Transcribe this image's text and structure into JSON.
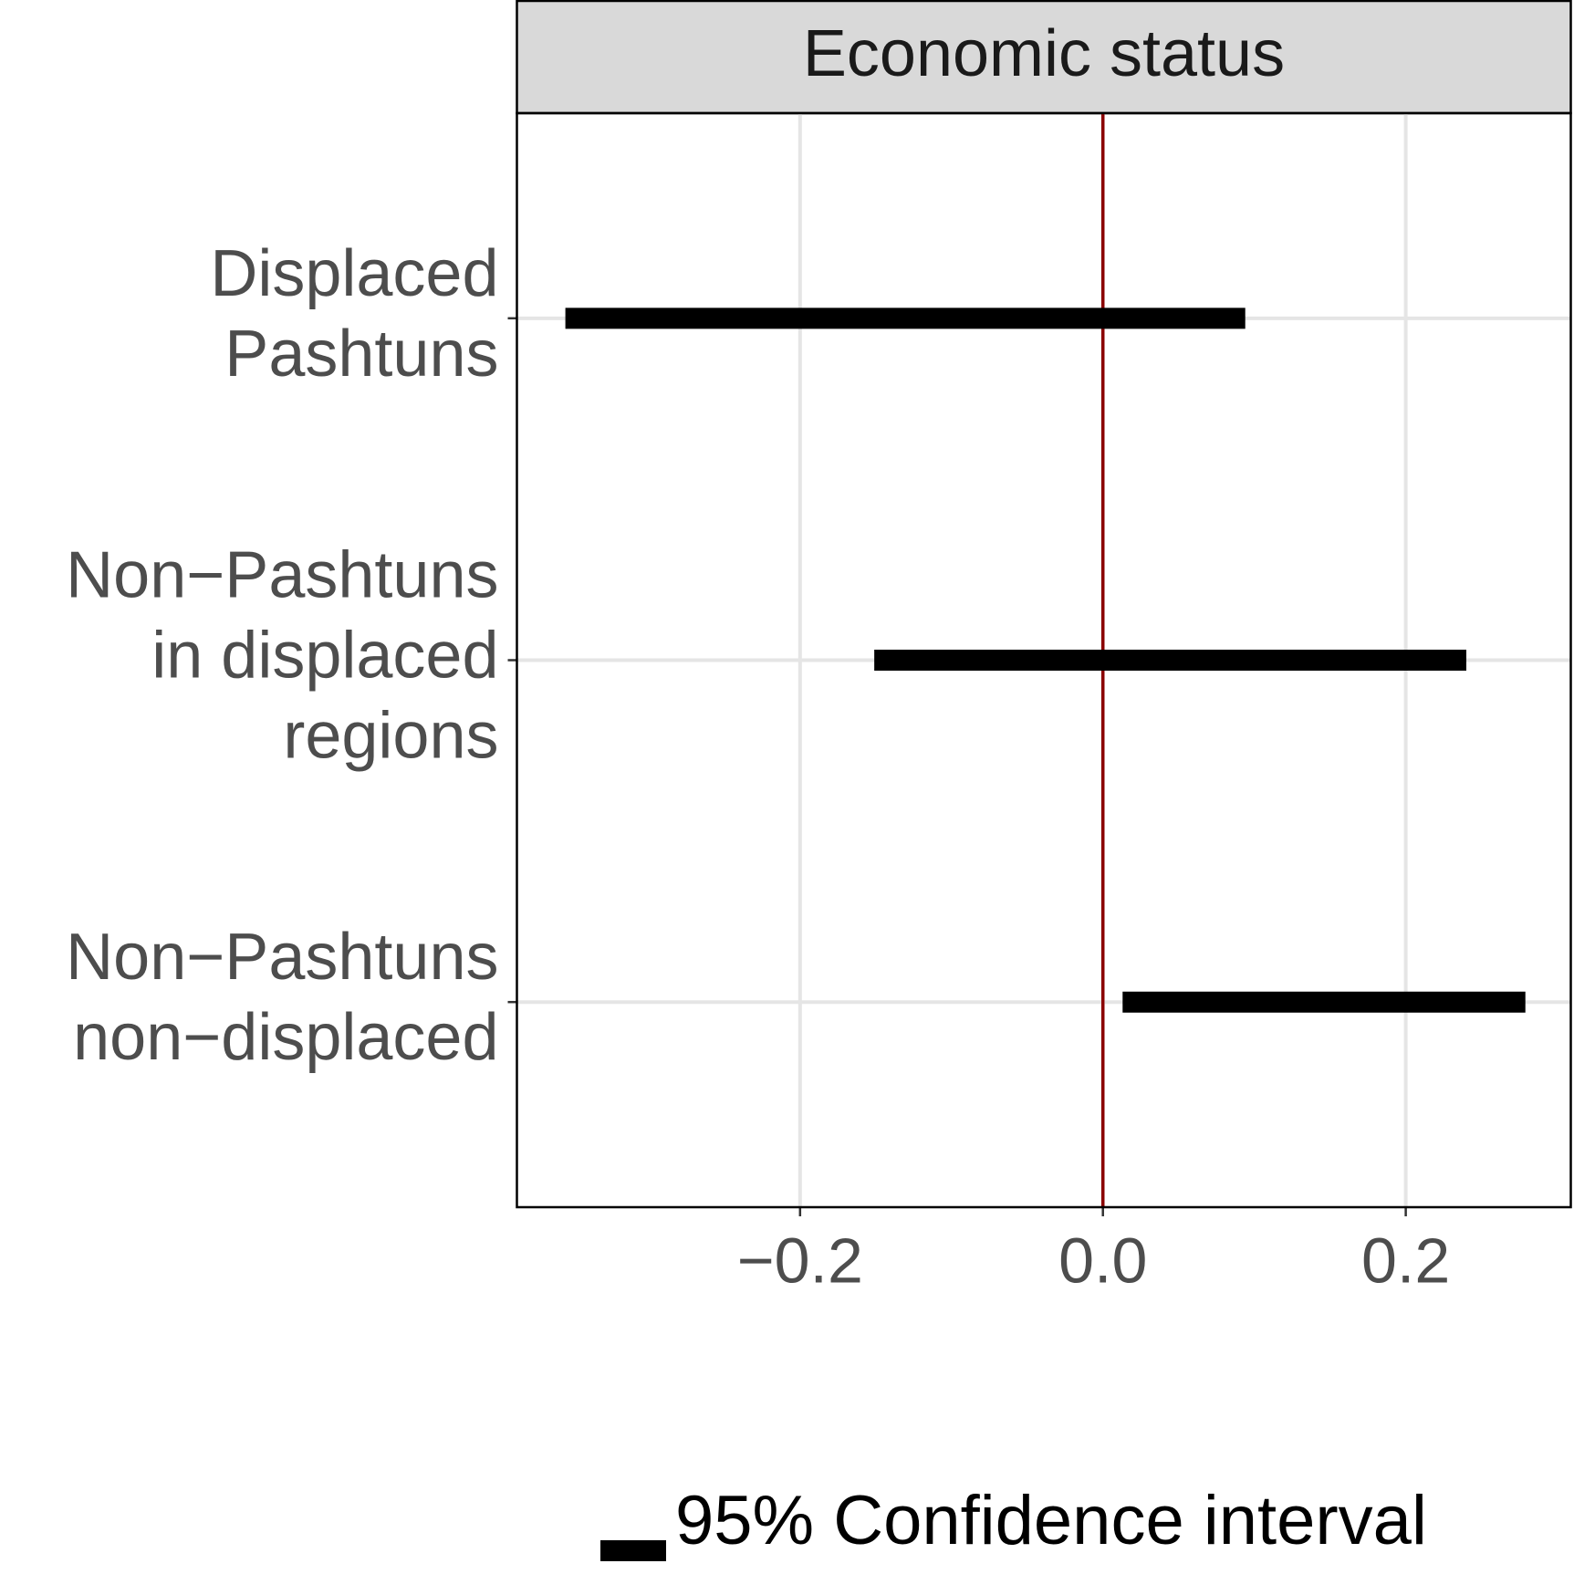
{
  "chart_data": {
    "type": "interval",
    "title": "Economic status",
    "categories": [
      [
        "Displaced",
        "Pashtuns"
      ],
      [
        "Non−Pashtuns",
        "in displaced",
        "regions"
      ],
      [
        "Non−Pashtuns",
        "non−displaced"
      ]
    ],
    "series": [
      {
        "name": "95% Confidence interval",
        "color": "#000000",
        "low": [
          -0.355,
          -0.151,
          0.013
        ],
        "high": [
          0.094,
          0.24,
          0.279
        ]
      }
    ],
    "xlim": [
      -0.387,
      0.309
    ],
    "xticks": [
      {
        "value": -0.2,
        "label": "−0.2"
      },
      {
        "value": 0,
        "label": "0.0"
      },
      {
        "value": 0.2,
        "label": "0.2"
      }
    ],
    "reference_line": 0,
    "reference_color": "#8b0000",
    "grid": true
  }
}
